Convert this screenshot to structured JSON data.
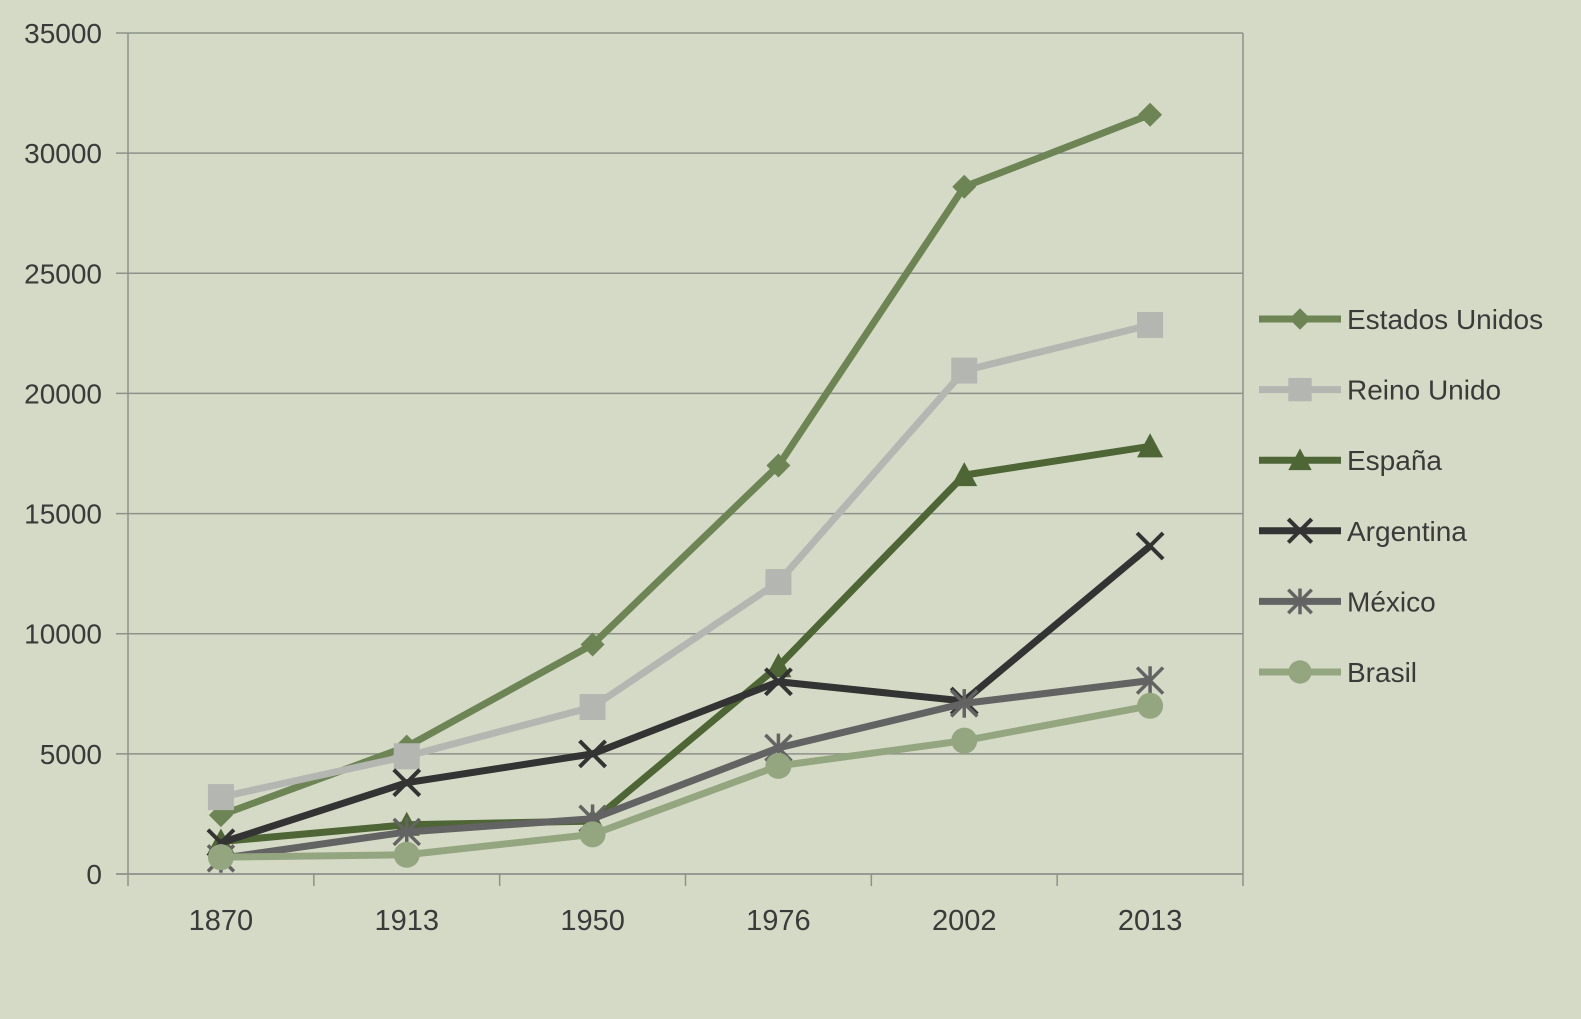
{
  "chart_data": {
    "type": "line",
    "title": "",
    "xlabel": "",
    "ylabel": "",
    "categories": [
      "1870",
      "1913",
      "1950",
      "1976",
      "2002",
      "2013"
    ],
    "ylim": [
      0,
      35000
    ],
    "yticks": [
      "0",
      "5000",
      "10000",
      "15000",
      "20000",
      "25000",
      "30000",
      "35000"
    ],
    "grid": "horizontal",
    "legend_position": "right",
    "series": [
      {
        "name": "Estados Unidos",
        "values": [
          2450,
          5300,
          9550,
          17000,
          28600,
          31600
        ],
        "color": "#6d8455",
        "marker": "diamond"
      },
      {
        "name": "Reino Unido",
        "values": [
          3200,
          4900,
          6950,
          12150,
          20950,
          22850
        ],
        "color": "#b4b6b2",
        "marker": "square"
      },
      {
        "name": "España",
        "values": [
          1350,
          2050,
          2200,
          8650,
          16600,
          17800
        ],
        "color": "#4e6535",
        "marker": "triangle"
      },
      {
        "name": "Argentina",
        "values": [
          1300,
          3800,
          5000,
          8000,
          7200,
          13650
        ],
        "color": "#333333",
        "marker": "x"
      },
      {
        "name": "México",
        "values": [
          650,
          1750,
          2300,
          5250,
          7100,
          8050
        ],
        "color": "#636363",
        "marker": "star"
      },
      {
        "name": "Brasil",
        "values": [
          700,
          800,
          1650,
          4500,
          5550,
          7000
        ],
        "color": "#94a680",
        "marker": "circle"
      }
    ]
  }
}
